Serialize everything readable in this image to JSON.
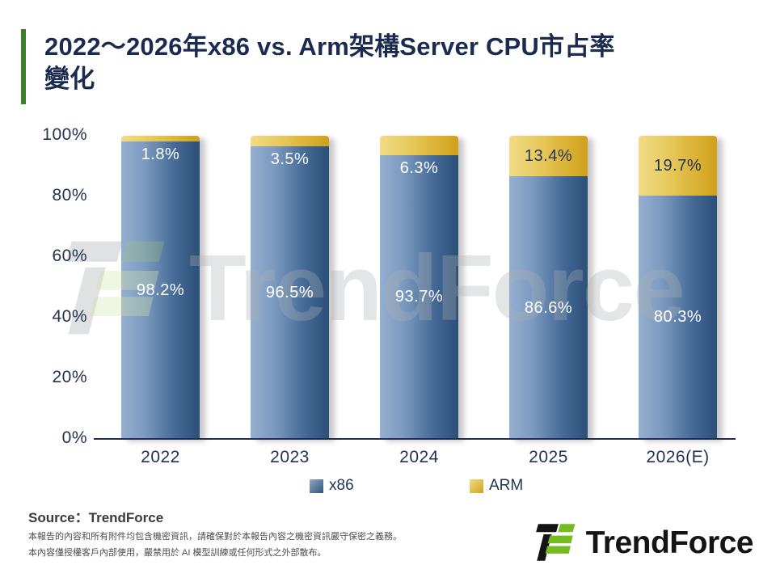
{
  "title": {
    "line1": "2022～2026年x86 vs. Arm架構Server CPU市占率",
    "line2": "變化"
  },
  "chart_data": {
    "type": "bar",
    "stacked": true,
    "categories": [
      "2022",
      "2023",
      "2024",
      "2025",
      "2026(E)"
    ],
    "series": [
      {
        "name": "x86",
        "values": [
          98.2,
          96.5,
          93.7,
          86.6,
          80.3
        ]
      },
      {
        "name": "ARM",
        "values": [
          1.8,
          3.5,
          6.3,
          13.4,
          19.7
        ]
      }
    ],
    "value_suffix": "%",
    "y_ticks": [
      "100%",
      "80%",
      "60%",
      "40%",
      "20%",
      "0%"
    ],
    "ylim": [
      0,
      100
    ],
    "grid": "off",
    "legend_position": "bottom",
    "title": "2022～2026年x86 vs. Arm架構Server CPU市占率變化"
  },
  "legend": {
    "x86_label": "x86",
    "arm_label": "ARM"
  },
  "watermark": {
    "text": "TrendForce"
  },
  "footer": {
    "source_label": "Source：TrendForce",
    "disclaimer_line1": "本報告的內容和所有附件均包含機密資訊，請確保對於本報告內容之機密資訊嚴守保密之義務。",
    "disclaimer_line2": "本內容僅授權客戶內部使用，嚴禁用於 AI 模型訓練或任何形式之外部散布。",
    "logo_text": "TrendForce"
  },
  "colors": {
    "title_navy": "#1B2B4F",
    "accent_green": "#3E7D2E",
    "x86_blue_light": "#95AFCF",
    "x86_blue_dark": "#2C5078",
    "arm_yellow_light": "#F1DB85",
    "arm_yellow_dark": "#CDA01C",
    "logo_green": "#76BC21",
    "logo_black": "#141414"
  }
}
